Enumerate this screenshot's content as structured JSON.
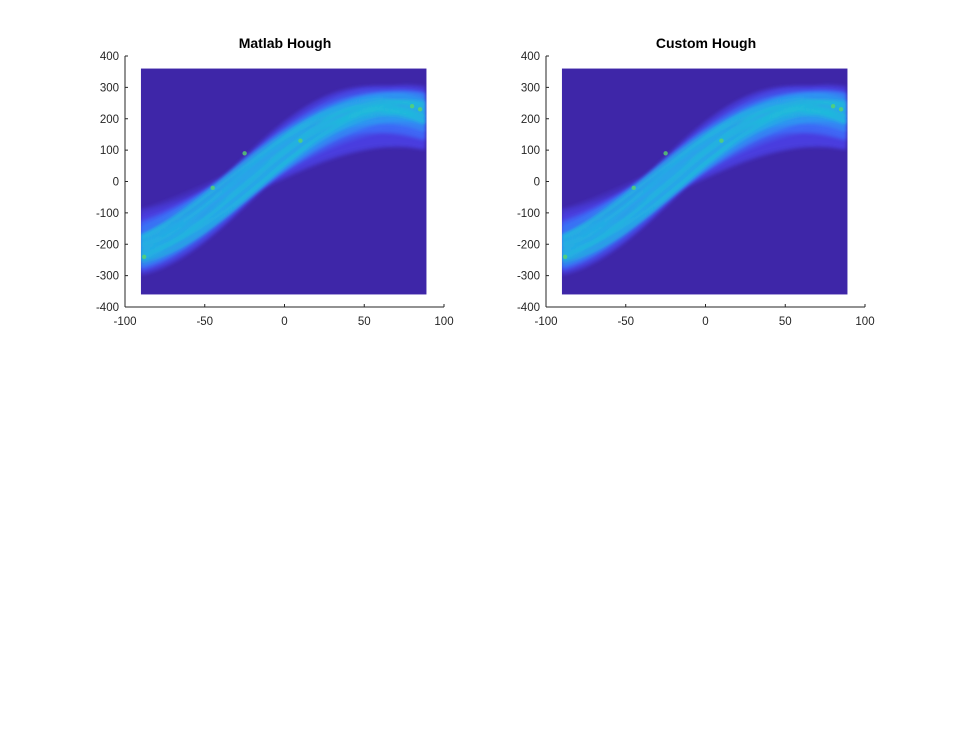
{
  "chart_data": [
    {
      "type": "heatmap",
      "title": "Matlab Hough",
      "xlabel": "",
      "ylabel": "",
      "xlim": [
        -100,
        100
      ],
      "ylim": [
        -400,
        400
      ],
      "xticks": [
        "-100",
        "-50",
        "0",
        "50",
        "100"
      ],
      "yticks": [
        "400",
        "300",
        "200",
        "100",
        "0",
        "-100",
        "-200",
        "-300",
        "-400"
      ],
      "image_extent": {
        "theta": [
          -90,
          89
        ],
        "rho": [
          -360,
          360
        ]
      },
      "background_color": "#3e26a8",
      "band_colors": [
        "#4a3fe0",
        "#3f6bf7",
        "#2f9bf2",
        "#1fc0d8",
        "#59d46b"
      ],
      "grid": false
    },
    {
      "type": "heatmap",
      "title": "Custom Hough",
      "xlabel": "",
      "ylabel": "",
      "xlim": [
        -100,
        100
      ],
      "ylim": [
        -400,
        400
      ],
      "xticks": [
        "-100",
        "-50",
        "0",
        "50",
        "100"
      ],
      "yticks": [
        "400",
        "300",
        "200",
        "100",
        "0",
        "-100",
        "-200",
        "-300",
        "-400"
      ],
      "image_extent": {
        "theta": [
          -90,
          89
        ],
        "rho": [
          -360,
          360
        ]
      },
      "background_color": "#3e26a8",
      "band_colors": [
        "#4a3fe0",
        "#3f6bf7",
        "#2f9bf2",
        "#1fc0d8",
        "#59d46b"
      ],
      "grid": false
    }
  ]
}
